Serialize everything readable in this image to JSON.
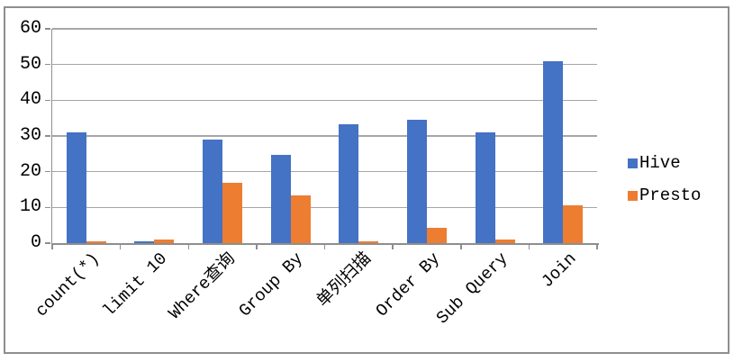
{
  "chart_data": {
    "type": "bar",
    "title": "",
    "categories": [
      "count(*)",
      "limit 10",
      "Where查询",
      "Group By",
      "单列扫描",
      "Order By",
      "Sub Query",
      "Join"
    ],
    "series": [
      {
        "name": "Hive",
        "color": "#4472C4",
        "values": [
          31,
          0.5,
          29,
          24.8,
          33.3,
          34.5,
          31,
          51
        ]
      },
      {
        "name": "Presto",
        "color": "#ED7D31",
        "values": [
          0.6,
          0.9,
          17,
          13.3,
          0.4,
          4.3,
          1,
          10.6
        ]
      }
    ],
    "xlabel": "",
    "ylabel": "",
    "ylim": [
      0,
      60
    ],
    "yticks": [
      0,
      10,
      20,
      30,
      40,
      50,
      60
    ],
    "grid": true,
    "legend_position": "right",
    "x_label_rotation_deg": 45
  },
  "colors": {
    "background": "#FFFFFF",
    "border": "#8E8E8E",
    "gridline": "#A6A6A6",
    "axis": "#8E8E8E",
    "text": "#000000",
    "hive": "#4472C4",
    "presto": "#ED7D31"
  }
}
